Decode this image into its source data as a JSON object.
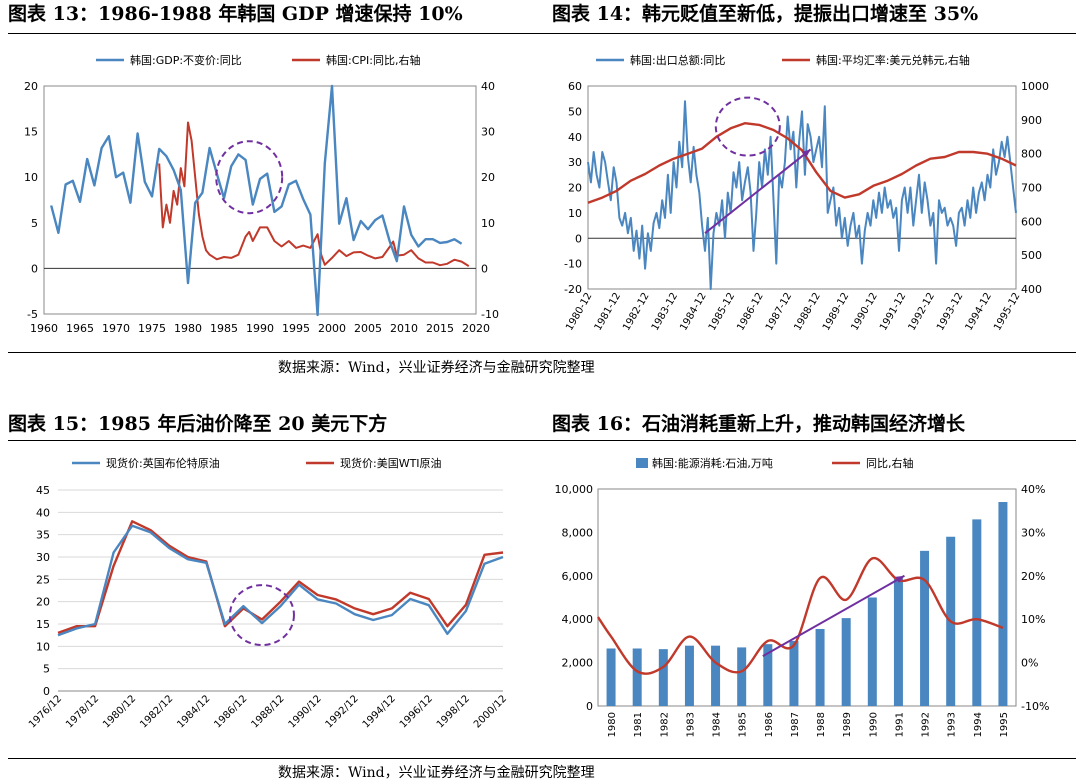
{
  "source_top": "数据来源：Wind，兴业证券经济与金融研究院整理",
  "source_bottom": "数据来源：Wind，兴业证券经济与金融研究院整理",
  "colors": {
    "blue": "#4a86c0",
    "red": "#c0392b",
    "bar": "#4a86c0",
    "annotation": "#7030a0"
  },
  "chart_data": [
    {
      "type": "line",
      "title": "图表 13：1986-1988 年韩国 GDP 增速保持 10%",
      "x_ticks": [
        1960,
        1965,
        1970,
        1975,
        1980,
        1985,
        1990,
        1995,
        2000,
        2005,
        2010,
        2015,
        2020
      ],
      "xlim": [
        1960,
        2020
      ],
      "y_left_ticks": [
        -5,
        0,
        5,
        10,
        15,
        20
      ],
      "ylim_left": [
        -5,
        20
      ],
      "y_right_ticks": [
        -10,
        0,
        10,
        20,
        30,
        40
      ],
      "ylim_right": [
        -10,
        40
      ],
      "legend_position": "top",
      "series": [
        {
          "name": "韩国:GDP:不变价:同比",
          "axis": "left",
          "x": [
            1961,
            1962,
            1963,
            1964,
            1965,
            1966,
            1967,
            1968,
            1969,
            1970,
            1971,
            1972,
            1973,
            1974,
            1975,
            1976,
            1977,
            1978,
            1979,
            1980,
            1981,
            1982,
            1983,
            1984,
            1985,
            1986,
            1987,
            1988,
            1989,
            1990,
            1991,
            1992,
            1993,
            1994,
            1995,
            1996,
            1997,
            1998,
            1999,
            2000,
            2001,
            2002,
            2003,
            2004,
            2005,
            2006,
            2007,
            2008,
            2009,
            2010,
            2011,
            2012,
            2013,
            2014,
            2015,
            2016,
            2017,
            2018
          ],
          "values": [
            6.9,
            3.9,
            9.2,
            9.6,
            7.3,
            12.0,
            9.1,
            13.2,
            14.5,
            10.0,
            10.5,
            7.2,
            14.8,
            9.5,
            7.9,
            13.1,
            12.3,
            10.8,
            8.6,
            -1.6,
            7.2,
            8.3,
            13.2,
            10.4,
            7.7,
            11.2,
            12.5,
            11.9,
            7.0,
            9.8,
            10.4,
            6.2,
            6.8,
            9.2,
            9.6,
            7.6,
            5.9,
            -5.1,
            11.5,
            20.0,
            4.9,
            7.7,
            3.1,
            5.2,
            4.3,
            5.3,
            5.8,
            3.0,
            0.8,
            6.8,
            3.7,
            2.4,
            3.2,
            3.2,
            2.8,
            2.9,
            3.2,
            2.7
          ]
        },
        {
          "name": "韩国:CPI:同比,右轴",
          "axis": "right",
          "x": [
            1976,
            1976.5,
            1977,
            1977.5,
            1978,
            1978.5,
            1979,
            1979.5,
            1980,
            1980.5,
            1981,
            1981.5,
            1982,
            1982.5,
            1983,
            1984,
            1985,
            1986,
            1987,
            1987.5,
            1988,
            1988.5,
            1989,
            1990,
            1991,
            1992,
            1993,
            1994,
            1995,
            1996,
            1997,
            1998,
            1998.5,
            1999,
            2000,
            2001,
            2002,
            2003,
            2004,
            2005,
            2006,
            2007,
            2008,
            2008.5,
            2009,
            2010,
            2011,
            2012,
            2013,
            2014,
            2015,
            2016,
            2017,
            2018,
            2019
          ],
          "values": [
            23,
            9,
            14,
            10,
            17,
            14,
            22,
            18,
            32,
            28,
            20,
            12,
            7,
            4,
            3,
            2,
            2.5,
            2.3,
            3,
            5,
            7,
            8,
            6,
            9,
            9,
            6,
            4.8,
            6,
            4.5,
            5,
            4.5,
            7.5,
            3,
            0.8,
            2.3,
            4,
            2.7,
            3.5,
            3.6,
            2.8,
            2.2,
            2.5,
            4.7,
            5.9,
            2.8,
            3,
            4,
            2.2,
            1.3,
            1.3,
            0.7,
            1,
            1.9,
            1.5,
            0.5
          ]
        }
      ],
      "annotation": {
        "type": "ellipse",
        "x_center": 1988.5,
        "y_center": 10
      }
    },
    {
      "type": "line",
      "title": "图表 14：韩元贬值至新低，提振出口增速至 35%",
      "x_ticks": [
        "1980-12",
        "1981-12",
        "1982-12",
        "1983-12",
        "1984-12",
        "1985-12",
        "1986-12",
        "1987-12",
        "1988-12",
        "1989-12",
        "1990-12",
        "1991-12",
        "1992-12",
        "1993-12",
        "1994-12",
        "1995-12"
      ],
      "xlim": [
        0,
        15
      ],
      "y_left_ticks": [
        -20,
        -10,
        0,
        10,
        20,
        30,
        40,
        50,
        60
      ],
      "ylim_left": [
        -20,
        60
      ],
      "y_right_ticks": [
        400,
        500,
        600,
        700,
        800,
        900,
        1000
      ],
      "ylim_right": [
        400,
        1000
      ],
      "legend_position": "top",
      "series": [
        {
          "name": "韩国:出口总额:同比",
          "axis": "left",
          "x": [
            0,
            0.1,
            0.2,
            0.3,
            0.4,
            0.5,
            0.6,
            0.7,
            0.8,
            0.9,
            1.0,
            1.1,
            1.2,
            1.3,
            1.4,
            1.5,
            1.6,
            1.7,
            1.8,
            1.9,
            2.0,
            2.1,
            2.2,
            2.3,
            2.4,
            2.5,
            2.6,
            2.7,
            2.8,
            2.9,
            3.0,
            3.1,
            3.2,
            3.3,
            3.4,
            3.5,
            3.6,
            3.7,
            3.8,
            3.9,
            4.0,
            4.1,
            4.2,
            4.3,
            4.4,
            4.5,
            4.6,
            4.7,
            4.8,
            4.9,
            5.0,
            5.1,
            5.2,
            5.3,
            5.4,
            5.5,
            5.6,
            5.7,
            5.8,
            5.9,
            6.0,
            6.1,
            6.2,
            6.3,
            6.4,
            6.5,
            6.6,
            6.7,
            6.8,
            6.9,
            7.0,
            7.1,
            7.2,
            7.3,
            7.4,
            7.5,
            7.6,
            7.7,
            7.8,
            7.9,
            8.0,
            8.1,
            8.2,
            8.3,
            8.4,
            8.5,
            8.6,
            8.7,
            8.8,
            8.9,
            9.0,
            9.1,
            9.2,
            9.3,
            9.4,
            9.5,
            9.6,
            9.7,
            9.8,
            9.9,
            10.0,
            10.1,
            10.2,
            10.3,
            10.4,
            10.5,
            10.6,
            10.7,
            10.8,
            10.9,
            11.0,
            11.1,
            11.2,
            11.3,
            11.4,
            11.5,
            11.6,
            11.7,
            11.8,
            11.9,
            12.0,
            12.1,
            12.2,
            12.3,
            12.4,
            12.5,
            12.6,
            12.7,
            12.8,
            12.9,
            13.0,
            13.1,
            13.2,
            13.3,
            13.4,
            13.5,
            13.6,
            13.7,
            13.8,
            13.9,
            14.0,
            14.1,
            14.2,
            14.3,
            14.4,
            14.5,
            14.6,
            14.7,
            14.8,
            14.9,
            15.0
          ],
          "values": [
            30,
            22,
            34,
            25,
            20,
            34,
            30,
            22,
            15,
            28,
            22,
            8,
            5,
            10,
            2,
            8,
            -5,
            3,
            -8,
            5,
            -12,
            2,
            -5,
            6,
            10,
            4,
            15,
            8,
            25,
            10,
            30,
            20,
            38,
            28,
            54,
            32,
            22,
            36,
            25,
            18,
            5,
            -5,
            8,
            -20,
            2,
            10,
            5,
            15,
            0,
            18,
            10,
            26,
            20,
            30,
            15,
            22,
            28,
            18,
            -5,
            10,
            30,
            20,
            35,
            25,
            40,
            15,
            -10,
            25,
            20,
            30,
            48,
            35,
            42,
            20,
            38,
            50,
            25,
            45,
            40,
            30,
            35,
            40,
            28,
            52,
            10,
            15,
            20,
            5,
            12,
            0,
            8,
            -3,
            5,
            10,
            0,
            5,
            -10,
            3,
            10,
            5,
            15,
            8,
            18,
            10,
            20,
            12,
            15,
            8,
            12,
            -5,
            15,
            20,
            10,
            20,
            5,
            15,
            25,
            10,
            22,
            15,
            5,
            10,
            -10,
            15,
            10,
            12,
            5,
            8,
            5,
            -3,
            10,
            12,
            5,
            15,
            8,
            20,
            10,
            18,
            22,
            15,
            25,
            20,
            35,
            25,
            30,
            38,
            32,
            40,
            30,
            20,
            10
          ]
        },
        {
          "name": "韩国:平均汇率:美元兑韩元,右轴",
          "axis": "right",
          "x": [
            0,
            0.5,
            1.0,
            1.5,
            2.0,
            2.5,
            3.0,
            3.5,
            4.0,
            4.5,
            5.0,
            5.5,
            6.0,
            6.5,
            7.0,
            7.5,
            8.0,
            8.5,
            9.0,
            9.5,
            10.0,
            10.5,
            11.0,
            11.5,
            12.0,
            12.5,
            13.0,
            13.5,
            14.0,
            14.5,
            15.0
          ],
          "values": [
            655,
            670,
            690,
            720,
            740,
            765,
            785,
            800,
            815,
            850,
            875,
            890,
            885,
            870,
            845,
            810,
            745,
            690,
            670,
            680,
            705,
            720,
            740,
            765,
            785,
            790,
            805,
            805,
            800,
            785,
            765
          ]
        }
      ],
      "annotation": {
        "type": "ellipse+arrow"
      }
    },
    {
      "type": "line",
      "title": "图表 15：1985 年后油价降至 20 美元下方",
      "x_ticks": [
        "1976/12",
        "1978/12",
        "1980/12",
        "1982/12",
        "1984/12",
        "1986/12",
        "1988/12",
        "1990/12",
        "1992/12",
        "1994/12",
        "1996/12",
        "1998/12",
        "2000/12"
      ],
      "xlim": [
        1976.9,
        2000.9
      ],
      "y_ticks": [
        0,
        5,
        10,
        15,
        20,
        25,
        30,
        35,
        40,
        45
      ],
      "ylim": [
        0,
        45
      ],
      "legend_position": "top",
      "series": [
        {
          "name": "现货价:英国布伦特原油",
          "x": [
            1976.9,
            1977.9,
            1978.9,
            1979.9,
            1980.9,
            1981.9,
            1982.9,
            1983.9,
            1984.9,
            1985.9,
            1986.9,
            1987.9,
            1988.9,
            1989.9,
            1990.9,
            1991.9,
            1992.9,
            1993.9,
            1994.9,
            1995.9,
            1996.9,
            1997.9,
            1998.9,
            1999.9,
            2000.9
          ],
          "values": [
            12.5,
            14,
            15,
            31,
            37,
            35.5,
            32,
            29.5,
            28.7,
            15,
            19,
            15.2,
            19,
            23.8,
            20.5,
            19.6,
            17.2,
            15.9,
            17,
            20.6,
            19.2,
            12.8,
            17.9,
            28.5,
            30
          ]
        },
        {
          "name": "现货价:美国WTI原油",
          "x": [
            1976.9,
            1977.9,
            1978.9,
            1979.9,
            1980.9,
            1981.9,
            1982.9,
            1983.9,
            1984.9,
            1985.9,
            1986.9,
            1987.9,
            1988.9,
            1989.9,
            1990.9,
            1991.9,
            1992.9,
            1993.9,
            1994.9,
            1995.9,
            1996.9,
            1997.9,
            1998.9,
            1999.9,
            2000.9
          ],
          "values": [
            13,
            14.5,
            14.5,
            28,
            38,
            36,
            32.5,
            30,
            29,
            14.5,
            18.5,
            16,
            20,
            24.5,
            21.5,
            20.5,
            18.5,
            17.2,
            18.5,
            22,
            20.6,
            14.5,
            19.3,
            30.5,
            31
          ]
        }
      ],
      "annotation": {
        "type": "ellipse",
        "x_center": 1987.9,
        "y_center": 17
      }
    },
    {
      "type": "bar",
      "title": "图表 16：石油消耗重新上升，推动韩国经济增长",
      "categories": [
        "1980",
        "1981",
        "1982",
        "1983",
        "1984",
        "1985",
        "1986",
        "1987",
        "1988",
        "1989",
        "1990",
        "1991",
        "1992",
        "1993",
        "1994",
        "1995"
      ],
      "y_left_ticks": [
        "0",
        "2,000",
        "4,000",
        "6,000",
        "8,000",
        "10,000"
      ],
      "ylim_left": [
        0,
        10000
      ],
      "y_right_ticks": [
        "-10%",
        "0%",
        "10%",
        "20%",
        "30%",
        "40%"
      ],
      "ylim_right": [
        -10,
        40
      ],
      "legend_position": "top",
      "series": [
        {
          "name": "韩国:能源消耗:石油,万吨",
          "type": "bar",
          "axis": "left",
          "values": [
            2650,
            2650,
            2620,
            2780,
            2780,
            2700,
            2850,
            3000,
            3550,
            4050,
            5000,
            5950,
            7150,
            7800,
            8600,
            9400
          ]
        },
        {
          "name": "同比,右轴",
          "type": "line",
          "axis": "right",
          "values": [
            6,
            -2,
            -1,
            6,
            0,
            -2,
            5,
            4,
            19.5,
            14.5,
            24,
            19,
            19,
            9.5,
            10,
            8
          ]
        }
      ],
      "annotation": {
        "type": "arrow"
      }
    }
  ]
}
